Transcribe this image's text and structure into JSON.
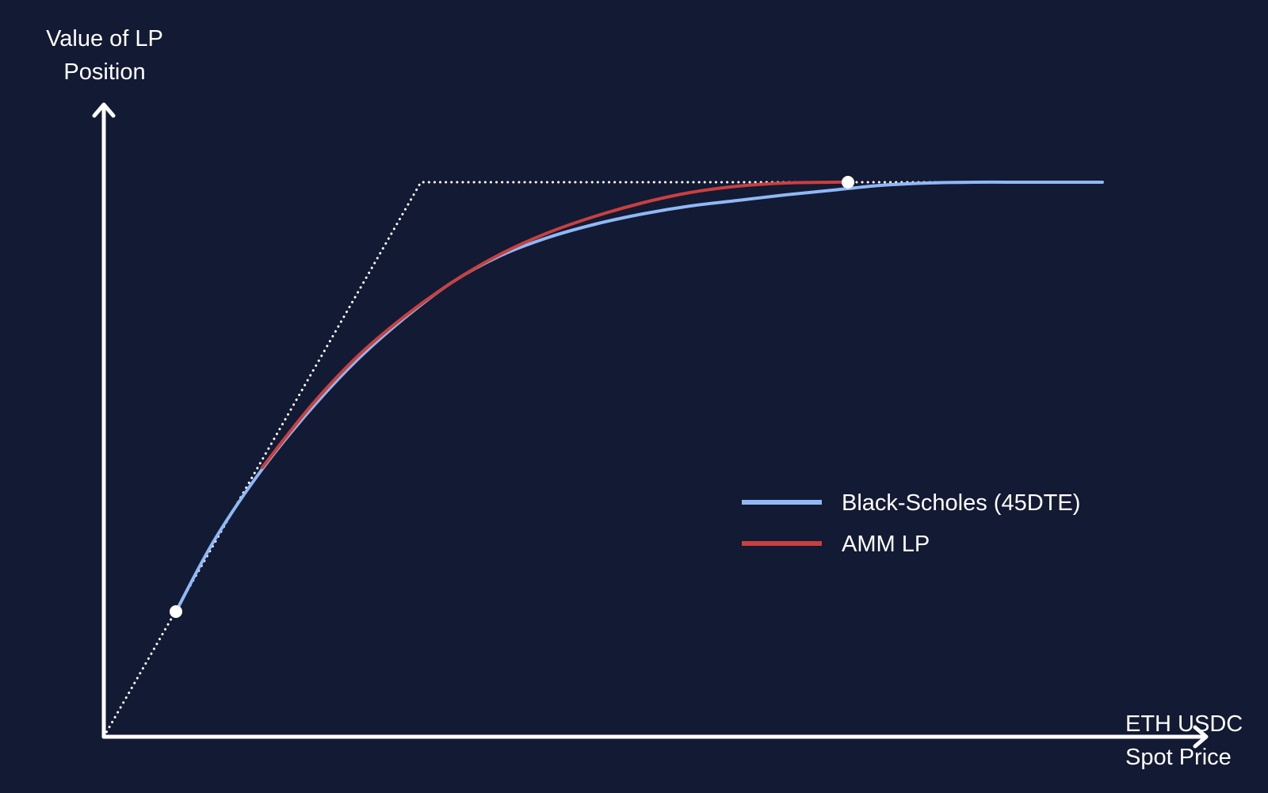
{
  "chart_data": {
    "type": "line",
    "title": "",
    "ylabel_lines": [
      "Value of LP",
      "Position"
    ],
    "xlabel_lines": [
      "ETH USDC",
      "Spot Price"
    ],
    "xlim": [
      0,
      1260
    ],
    "ylim": [
      0,
      710
    ],
    "grid": false,
    "legend_position": "center-right",
    "background_color": "#131a33",
    "axis_color": "#ffffff",
    "series": [
      {
        "name": "Black-Scholes (45DTE)",
        "color": "#8fb8f5",
        "x": [
          91,
          140,
          200,
          260,
          320,
          380,
          440,
          500,
          560,
          620,
          680,
          740,
          800,
          860,
          920,
          980,
          1040,
          1100,
          1160,
          1220,
          1260
        ],
        "y": [
          158,
          249,
          338,
          412,
          476,
          529,
          574,
          607,
          630,
          647,
          660,
          670,
          677,
          684,
          690,
          696,
          699,
          700,
          700,
          700,
          700
        ]
      },
      {
        "name": "AMM LP",
        "color": "#c9403f",
        "x": [
          200,
          260,
          320,
          380,
          440,
          500,
          560,
          620,
          680,
          740,
          800,
          860,
          920,
          939
        ],
        "y": [
          340,
          416,
          480,
          531,
          574,
          609,
          636,
          657,
          674,
          687,
          695,
          699,
          700,
          700
        ]
      },
      {
        "name": "bound",
        "color": "#ffffff",
        "style": "dotted",
        "x": [
          0,
          400,
          1260
        ],
        "y": [
          0,
          700,
          700
        ]
      }
    ],
    "markers": [
      {
        "x": 91,
        "y": 158
      },
      {
        "x": 939,
        "y": 700
      }
    ]
  }
}
